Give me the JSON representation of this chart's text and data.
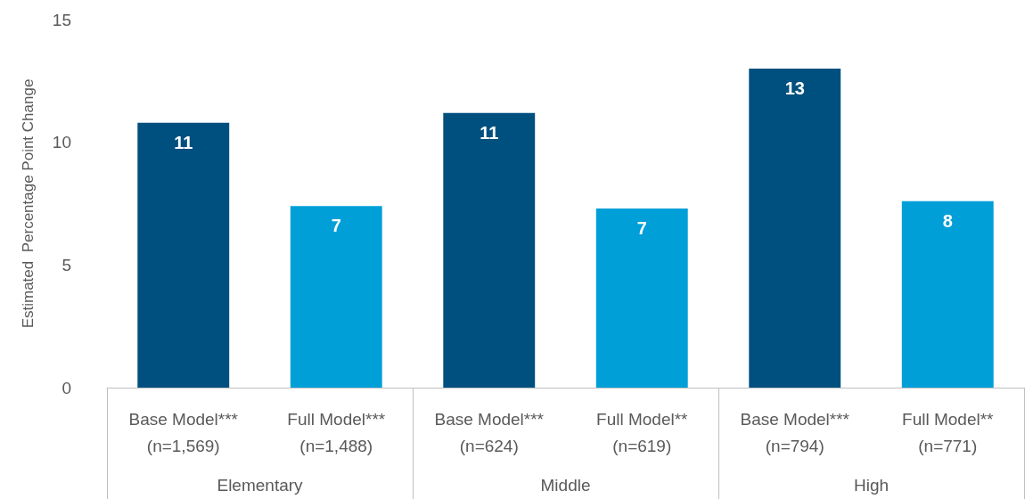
{
  "chart_data": {
    "type": "bar",
    "ylabel": "Estimated  Percentage Point Change",
    "categories": [
      "Base Model***\n(n=1,569)",
      "Full Model***\n(n=1,488)",
      "Base Model***\n(n=624)",
      "Full Model**\n(n=619)",
      "Base Model***\n(n=794)",
      "Full Model**\n(n=771)"
    ],
    "values": [
      10.8,
      7.4,
      11.2,
      7.3,
      13.0,
      7.6
    ],
    "colors": [
      "#00507f",
      "#009fd8",
      "#00507f",
      "#009fd8",
      "#00507f",
      "#009fd8"
    ],
    "value_labels": [
      "11",
      "7",
      "11",
      "7",
      "13",
      "8"
    ],
    "annotations": [
      "Elementary",
      "Middle",
      "High"
    ],
    "ylim": [
      0,
      15
    ],
    "yticks": [
      0,
      5,
      10,
      15
    ]
  }
}
